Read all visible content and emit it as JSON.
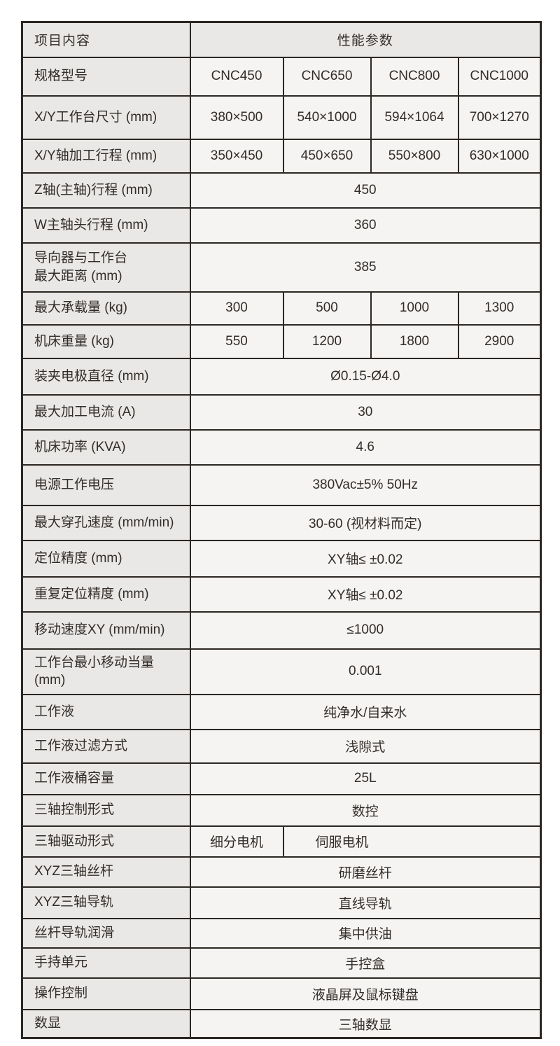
{
  "table": {
    "header": {
      "left": "项目内容",
      "right": "性能参数"
    },
    "rows": [
      {
        "type": "models",
        "label": "规格型号",
        "values": [
          "CNC450",
          "CNC650",
          "CNC800",
          "CNC1000"
        ]
      },
      {
        "type": "models",
        "label": "X/Y工作台尺寸 (mm)",
        "values": [
          "380×500",
          "540×1000",
          "594×1064",
          "700×1270"
        ]
      },
      {
        "type": "models",
        "label": "X/Y轴加工行程 (mm)",
        "values": [
          "350×450",
          "450×650",
          "550×800",
          "630×1000"
        ]
      },
      {
        "type": "span",
        "label": "Z轴(主轴)行程 (mm)",
        "value": "450"
      },
      {
        "type": "span",
        "label": "W主轴头行程 (mm)",
        "value": "360"
      },
      {
        "type": "span",
        "label": "导向器与工作台\n最大距离 (mm)",
        "value": "385"
      },
      {
        "type": "models",
        "label": "最大承载量 (kg)",
        "values": [
          "300",
          "500",
          "1000",
          "1300"
        ]
      },
      {
        "type": "models",
        "label": "机床重量 (kg)",
        "values": [
          "550",
          "1200",
          "1800",
          "2900"
        ]
      },
      {
        "type": "span",
        "label": "装夹电极直径 (mm)",
        "value": "Ø0.15-Ø4.0"
      },
      {
        "type": "span",
        "label": "最大加工电流 (A)",
        "value": "30"
      },
      {
        "type": "span",
        "label": "机床功率 (KVA)",
        "value": "4.6"
      },
      {
        "type": "span",
        "label": "电源工作电压",
        "value": "380Vac±5% 50Hz"
      },
      {
        "type": "span",
        "label": "最大穿孔速度 (mm/min)",
        "value": "30-60 (视材料而定)"
      },
      {
        "type": "span",
        "label": "定位精度 (mm)",
        "value": "XY轴≤ ±0.02"
      },
      {
        "type": "span",
        "label": "重复定位精度 (mm)",
        "value": "XY轴≤ ±0.02"
      },
      {
        "type": "span",
        "label": "移动速度XY (mm/min)",
        "value": "≤1000"
      },
      {
        "type": "span",
        "label": "工作台最小移动当量\n(mm)",
        "value": "0.001"
      },
      {
        "type": "span",
        "label": "工作液",
        "value": "纯净水/自来水"
      },
      {
        "type": "span",
        "label": "工作液过滤方式",
        "value": "浅隙式"
      },
      {
        "type": "span",
        "label": "工作液桶容量",
        "value": "25L"
      },
      {
        "type": "span",
        "label": "三轴控制形式",
        "value": "数控"
      },
      {
        "type": "split",
        "label": "三轴驱动形式",
        "values": [
          "细分电机",
          "伺服电机"
        ]
      },
      {
        "type": "span",
        "label": "XYZ三轴丝杆",
        "value": "研磨丝杆"
      },
      {
        "type": "span",
        "label": "XYZ三轴导轨",
        "value": "直线导轨"
      },
      {
        "type": "span",
        "label": "丝杆导轨润滑",
        "value": "集中供油"
      },
      {
        "type": "span",
        "label": "手持单元",
        "value": "手控盒"
      },
      {
        "type": "span",
        "label": "操作控制",
        "value": "液晶屏及鼠标键盘"
      },
      {
        "type": "span",
        "label": "数显",
        "value": "三轴数显"
      }
    ]
  },
  "colors": {
    "border": "#2c2723",
    "header_bg": "#e9e8e6",
    "label_bg": "#e9e8e6",
    "value_bg": "#f5f4f2",
    "text": "#332d29",
    "page_bg": "#ffffff"
  }
}
